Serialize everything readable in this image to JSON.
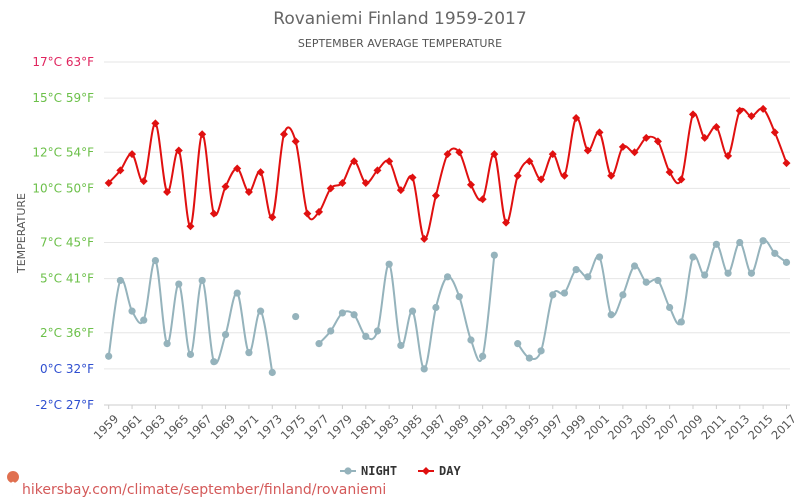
{
  "chart_data": {
    "type": "line",
    "title": "Rovaniemi Finland 1959-2017",
    "subtitle": "SEPTEMBER AVERAGE TEMPERATURE",
    "ylabel": "TEMPERATURE",
    "ylim": [
      -2,
      17
    ],
    "yticks": [
      {
        "value": 17,
        "label": "17°C 63°F",
        "color": "#e0245e"
      },
      {
        "value": 15,
        "label": "15°C 59°F",
        "color": "#6cc04a"
      },
      {
        "value": 12,
        "label": "12°C 54°F",
        "color": "#6cc04a"
      },
      {
        "value": 10,
        "label": "10°C 50°F",
        "color": "#6cc04a"
      },
      {
        "value": 7,
        "label": "7°C 45°F",
        "color": "#6cc04a"
      },
      {
        "value": 5,
        "label": "5°C 41°F",
        "color": "#6cc04a"
      },
      {
        "value": 2,
        "label": "2°C 36°F",
        "color": "#6cc04a"
      },
      {
        "value": 0,
        "label": "0°C 32°F",
        "color": "#2f4fd0"
      },
      {
        "value": -2,
        "label": "-2°C 27°F",
        "color": "#2f4fd0"
      }
    ],
    "x": [
      1959,
      1960,
      1961,
      1962,
      1963,
      1964,
      1965,
      1966,
      1967,
      1968,
      1969,
      1970,
      1971,
      1972,
      1973,
      1974,
      1975,
      1976,
      1977,
      1978,
      1979,
      1980,
      1981,
      1982,
      1983,
      1984,
      1985,
      1986,
      1987,
      1988,
      1989,
      1990,
      1991,
      1992,
      1993,
      1994,
      1995,
      1996,
      1997,
      1998,
      1999,
      2000,
      2001,
      2002,
      2003,
      2004,
      2005,
      2006,
      2007,
      2008,
      2009,
      2010,
      2011,
      2012,
      2013,
      2014,
      2015,
      2016,
      2017
    ],
    "xtick_labels": [
      "1959",
      "1961",
      "1963",
      "1965",
      "1967",
      "1969",
      "1971",
      "1973",
      "1975",
      "1977",
      "1979",
      "1981",
      "1983",
      "1985",
      "1987",
      "1989",
      "1991",
      "1993",
      "1995",
      "1997",
      "1999",
      "2001",
      "2003",
      "2005",
      "2007",
      "2009",
      "2011",
      "2013",
      "2015",
      "2017"
    ],
    "series": [
      {
        "name": "NIGHT",
        "color": "#95b3bc",
        "marker": "circle",
        "values": [
          0.7,
          4.9,
          3.2,
          2.7,
          6.0,
          1.4,
          4.7,
          0.8,
          4.9,
          0.4,
          1.9,
          4.2,
          0.9,
          3.2,
          -0.2,
          null,
          2.9,
          null,
          1.4,
          2.1,
          3.1,
          3.0,
          1.8,
          2.1,
          5.8,
          1.3,
          3.2,
          0.0,
          3.4,
          5.1,
          4.0,
          1.6,
          0.7,
          6.3,
          null,
          1.4,
          0.6,
          1.0,
          4.1,
          4.2,
          5.5,
          5.1,
          6.2,
          3.0,
          4.1,
          5.7,
          4.8,
          4.9,
          3.4,
          2.6,
          6.2,
          5.2,
          6.9,
          5.3,
          7.0,
          5.3,
          7.1,
          6.4,
          5.9
        ]
      },
      {
        "name": "DAY",
        "color": "#e01010",
        "marker": "diamond",
        "values": [
          10.3,
          11.0,
          11.9,
          10.4,
          13.6,
          9.8,
          12.1,
          7.9,
          13.0,
          8.6,
          10.1,
          11.1,
          9.8,
          10.9,
          8.4,
          13.0,
          12.6,
          8.6,
          8.7,
          10.0,
          10.3,
          11.5,
          10.3,
          11.0,
          11.5,
          9.9,
          10.6,
          7.2,
          9.6,
          11.9,
          12.0,
          10.2,
          9.4,
          11.9,
          8.1,
          10.7,
          11.5,
          10.5,
          11.9,
          10.7,
          13.9,
          12.1,
          13.1,
          10.7,
          12.3,
          12.0,
          12.8,
          12.6,
          10.9,
          10.5,
          14.1,
          12.8,
          13.4,
          11.8,
          14.3,
          14.0,
          14.4,
          13.1,
          11.4
        ]
      }
    ],
    "legend_position": "bottom-center",
    "grid": true
  },
  "footer": {
    "source_text": "hikersbay.com/climate/september/finland/rovaniemi",
    "pin_icon": "location-pin-icon"
  }
}
